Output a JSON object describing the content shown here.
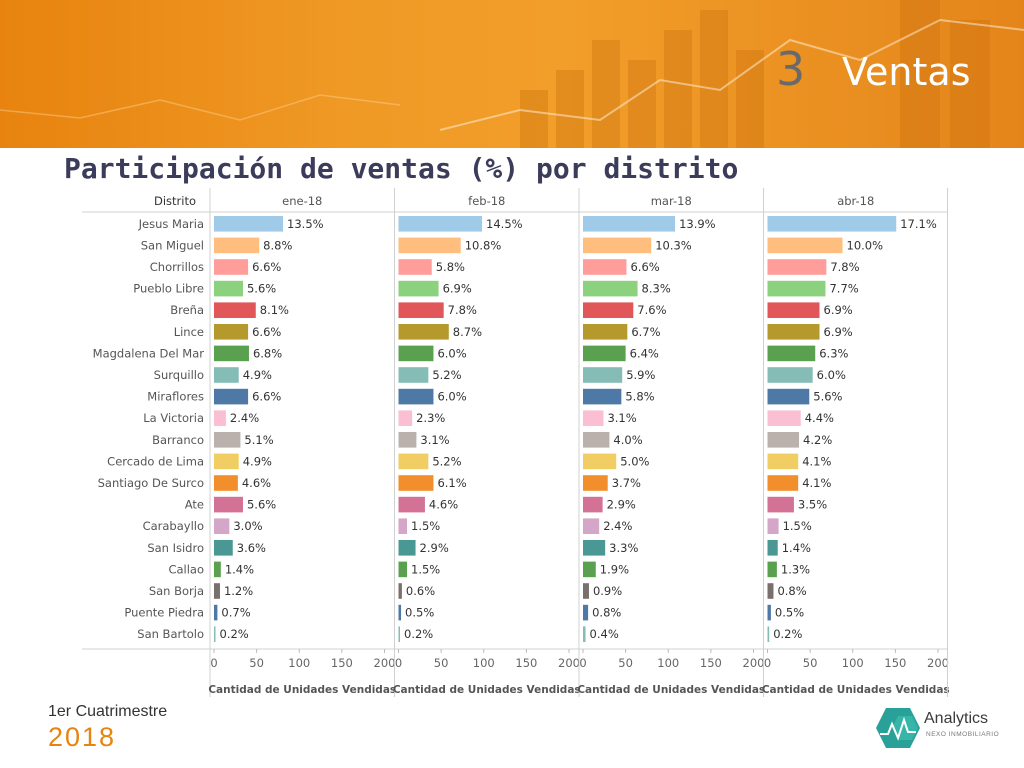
{
  "header": {
    "section_number": "3",
    "section_title": "Ventas"
  },
  "title": "Participación de ventas (%) por distrito",
  "footer": {
    "period_label": "1er Cuatrimestre",
    "year": "2018"
  },
  "logo": {
    "name": "Analytics",
    "tagline": "NEXO INMOBILIARIO"
  },
  "chart_data": {
    "type": "bar",
    "orientation": "horizontal",
    "row_header": "Distrito",
    "categories": [
      "Jesus Maria",
      "San Miguel",
      "Chorrillos",
      "Pueblo Libre",
      "Breña",
      "Lince",
      "Magdalena Del Mar",
      "Surquillo",
      "Miraflores",
      "La Victoria",
      "Barranco",
      "Cercado de Lima",
      "Santiago De Surco",
      "Ate",
      "Carabayllo",
      "San Isidro",
      "Callao",
      "San Borja",
      "Puente Piedra",
      "San Bartolo"
    ],
    "colors": [
      "#a0cbe8",
      "#ffbe7d",
      "#ff9d9a",
      "#8cd17d",
      "#e15759",
      "#b6992d",
      "#59a14f",
      "#86bcb6",
      "#4e79a7",
      "#fabfd2",
      "#bab0ac",
      "#f1ce63",
      "#f28e2b",
      "#d37295",
      "#d4a6c8",
      "#499894",
      "#59a14f",
      "#79706e",
      "#4e79a7",
      "#86bcb6"
    ],
    "axis": {
      "ticks": [
        0,
        50,
        100,
        150,
        200
      ],
      "xlim": [
        0,
        200
      ],
      "xlabel": "Cantidad de Unidades Vendidas"
    },
    "panels": [
      {
        "name": "ene-18",
        "values": [
          81,
          53,
          40,
          34,
          49,
          40,
          41,
          29,
          40,
          14,
          31,
          29,
          28,
          34,
          18,
          22,
          8,
          7,
          4,
          1
        ],
        "labels": [
          "13.5%",
          "8.8%",
          "6.6%",
          "5.6%",
          "8.1%",
          "6.6%",
          "6.8%",
          "4.9%",
          "6.6%",
          "2.4%",
          "5.1%",
          "4.9%",
          "4.6%",
          "5.6%",
          "3.0%",
          "3.6%",
          "1.4%",
          "1.2%",
          "0.7%",
          "0.2%"
        ]
      },
      {
        "name": "feb-18",
        "values": [
          98,
          73,
          39,
          47,
          53,
          59,
          41,
          35,
          41,
          16,
          21,
          35,
          41,
          31,
          10,
          20,
          10,
          4,
          3,
          1
        ],
        "labels": [
          "14.5%",
          "10.8%",
          "5.8%",
          "6.9%",
          "7.8%",
          "8.7%",
          "6.0%",
          "5.2%",
          "6.0%",
          "2.3%",
          "3.1%",
          "5.2%",
          "6.1%",
          "4.6%",
          "1.5%",
          "2.9%",
          "1.5%",
          "0.6%",
          "0.5%",
          "0.2%"
        ]
      },
      {
        "name": "mar-18",
        "values": [
          108,
          80,
          51,
          64,
          59,
          52,
          50,
          46,
          45,
          24,
          31,
          39,
          29,
          23,
          19,
          26,
          15,
          7,
          6,
          3
        ],
        "labels": [
          "13.9%",
          "10.3%",
          "6.6%",
          "8.3%",
          "7.6%",
          "6.7%",
          "6.4%",
          "5.9%",
          "5.8%",
          "3.1%",
          "4.0%",
          "5.0%",
          "3.7%",
          "2.9%",
          "2.4%",
          "3.3%",
          "1.9%",
          "0.9%",
          "0.8%",
          "0.4%"
        ]
      },
      {
        "name": "abr-18",
        "values": [
          151,
          88,
          69,
          68,
          61,
          61,
          56,
          53,
          49,
          39,
          37,
          36,
          36,
          31,
          13,
          12,
          11,
          7,
          4,
          2
        ],
        "labels": [
          "17.1%",
          "10.0%",
          "7.8%",
          "7.7%",
          "6.9%",
          "6.9%",
          "6.3%",
          "6.0%",
          "5.6%",
          "4.4%",
          "4.2%",
          "4.1%",
          "4.1%",
          "3.5%",
          "1.5%",
          "1.4%",
          "1.3%",
          "0.8%",
          "0.5%",
          "0.2%"
        ]
      }
    ]
  }
}
